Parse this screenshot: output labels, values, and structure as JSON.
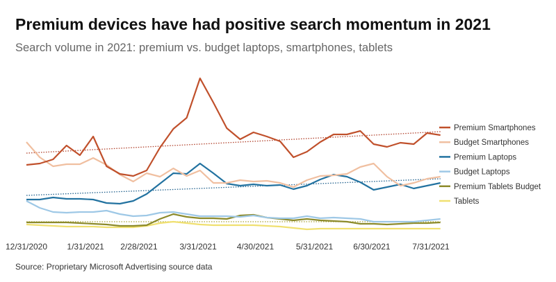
{
  "chart_data": {
    "type": "line",
    "title": "Premium devices have had positive search momentum in 2021",
    "subtitle": "Search volume in 2021: premium vs. budget laptops, smartphones, tablets",
    "source": "Source: Proprietary Microsoft Advertising source data",
    "xlabel": "",
    "ylabel": "",
    "x_start": "2020-12-31",
    "x_interval_days": 7,
    "xlim": [
      "2020-12-31",
      "2021-07-31"
    ],
    "ylim": [
      0,
      240
    ],
    "y_axis_labeled": false,
    "grid": false,
    "legend_placement": "right",
    "x_ticks": [
      "12/31/2020",
      "1/31/2021",
      "2/28/2021",
      "3/31/2021",
      "4/30/2021",
      "5/31/2021",
      "6/30/2021",
      "7/31/2021"
    ],
    "x_tick_dates": [
      "2020-12-31",
      "2021-01-31",
      "2021-02-28",
      "2021-03-31",
      "2021-04-30",
      "2021-05-31",
      "2021-06-30",
      "2021-07-31"
    ],
    "series": [
      {
        "name": "Premium Smartphones",
        "color": "#c0502b",
        "values": [
          102,
          104,
          110,
          130,
          116,
          143,
          100,
          89,
          86,
          94,
          127,
          154,
          170,
          227,
          192,
          155,
          139,
          149,
          143,
          136,
          113,
          121,
          135,
          146,
          146,
          151,
          132,
          128,
          134,
          132,
          148,
          145
        ],
        "trend": [
          119,
          150
        ],
        "trend_color": "#b0402a"
      },
      {
        "name": "Budget Smartphones",
        "color": "#f0bfa0",
        "values": [
          135,
          113,
          100,
          103,
          103,
          112,
          102,
          88,
          78,
          90,
          85,
          97,
          86,
          94,
          76,
          76,
          80,
          78,
          79,
          76,
          70,
          80,
          86,
          87,
          89,
          99,
          104,
          85,
          72,
          76,
          82,
          85
        ]
      },
      {
        "name": "Premium Laptops",
        "color": "#2272a0",
        "values": [
          52,
          52,
          55,
          53,
          53,
          52,
          47,
          46,
          50,
          60,
          75,
          90,
          89,
          104,
          90,
          75,
          72,
          74,
          72,
          73,
          67,
          72,
          81,
          88,
          85,
          77,
          66,
          70,
          74,
          68,
          72,
          76
        ],
        "trend": [
          58,
          82
        ],
        "trend_color": "#1e5f8c"
      },
      {
        "name": "Budget Laptops",
        "color": "#9ec8e6",
        "values": [
          50,
          40,
          34,
          33,
          34,
          34,
          36,
          31,
          28,
          29,
          33,
          34,
          31,
          28,
          28,
          28,
          27,
          29,
          26,
          25,
          25,
          28,
          25,
          26,
          25,
          24,
          20,
          20,
          20,
          20,
          22,
          24
        ]
      },
      {
        "name": "Premium Tablets Budget",
        "color": "#8c8a2a",
        "values": [
          19,
          19,
          19,
          19,
          18,
          17,
          16,
          14,
          14,
          15,
          24,
          31,
          27,
          25,
          25,
          24,
          29,
          30,
          26,
          24,
          22,
          24,
          22,
          21,
          20,
          17,
          17,
          16,
          17,
          18,
          18,
          19
        ],
        "trend": [
          20,
          20
        ],
        "trend_color": "#a8a030"
      },
      {
        "name": "Tablets",
        "color": "#f0e070",
        "values": [
          16,
          15,
          14,
          13,
          13,
          13,
          12,
          12,
          12,
          14,
          18,
          20,
          18,
          16,
          15,
          15,
          15,
          15,
          14,
          13,
          11,
          9,
          10,
          10,
          10,
          10,
          10,
          10,
          10,
          10,
          10,
          10
        ]
      }
    ]
  }
}
